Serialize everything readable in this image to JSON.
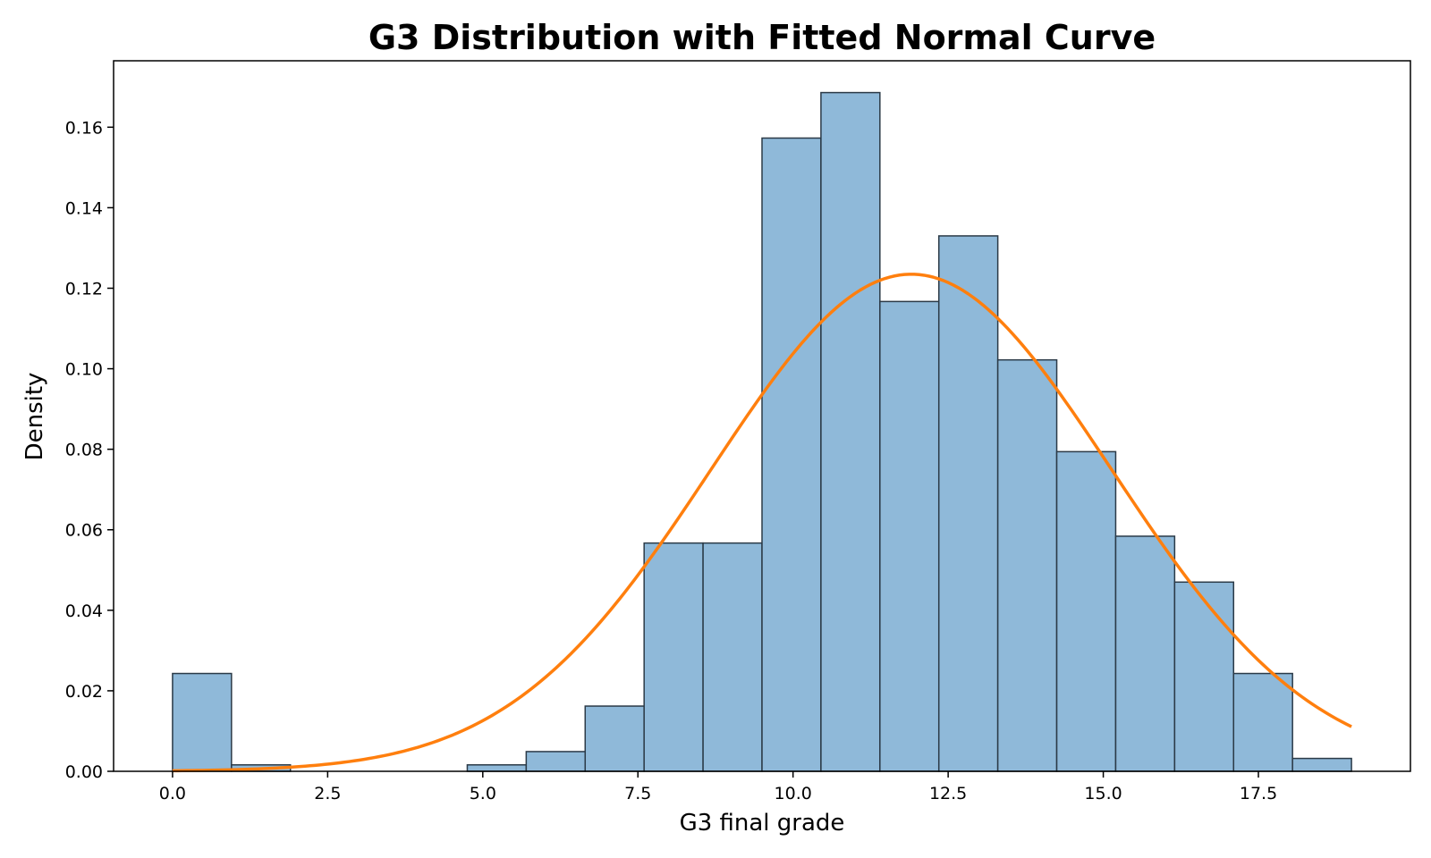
{
  "chart_data": {
    "type": "bar",
    "title": "G3 Distribution with Fitted Normal Curve",
    "xlabel": "G3 final grade",
    "ylabel": "Density",
    "xlim": [
      -0.95,
      19.95
    ],
    "ylim": [
      0,
      0.1765
    ],
    "xticks": [
      "0.0",
      "2.5",
      "5.0",
      "7.5",
      "10.0",
      "12.5",
      "15.0",
      "17.5"
    ],
    "yticks": [
      "0.00",
      "0.02",
      "0.04",
      "0.06",
      "0.08",
      "0.10",
      "0.12",
      "0.14",
      "0.16"
    ],
    "grid": false,
    "bins": {
      "edges": [
        0,
        0.95,
        1.9,
        2.85,
        3.8,
        4.75,
        5.7,
        6.65,
        7.6,
        8.55,
        9.5,
        10.45,
        11.4,
        12.35,
        13.3,
        14.25,
        15.2,
        16.15,
        17.1,
        18.05,
        19.0
      ],
      "values": [
        0.0243,
        0.0016,
        0,
        0,
        0,
        0.0016,
        0.0049,
        0.0162,
        0.0567,
        0.0567,
        0.1573,
        0.1686,
        0.1167,
        0.133,
        0.1022,
        0.0794,
        0.0584,
        0.047,
        0.0243,
        0.0032
      ]
    },
    "normal_fit": {
      "mean": 11.906,
      "std": 3.2309,
      "x_range": [
        0,
        19
      ]
    },
    "colors": {
      "bar_fill": "#8fb9d9",
      "bar_edge": "#2b3a47",
      "curve": "#ff7f0e"
    }
  }
}
